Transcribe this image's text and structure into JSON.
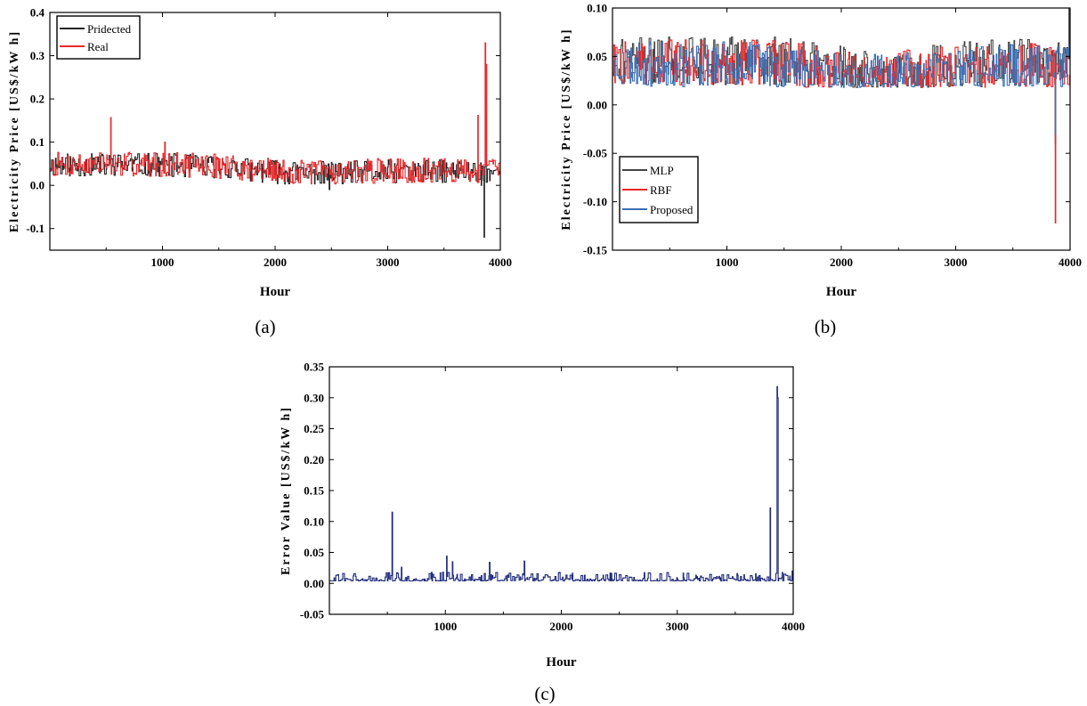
{
  "chart_data": [
    {
      "type": "line",
      "caption": "(a)",
      "xlabel": "Hour",
      "ylabel": "Electricity Price [US$/kW h]",
      "xlim": [
        0,
        4000
      ],
      "ylim": [
        -0.15,
        0.4
      ],
      "xticks": [
        "1000",
        "2000",
        "3000",
        "4000"
      ],
      "yticks": [
        "-0.1",
        "0.0",
        "0.1",
        "0.2",
        "0.3",
        "0.4"
      ],
      "legend": "top-left",
      "series": [
        {
          "name": "Pridected",
          "color": "#222222",
          "base": 0.032,
          "noise": 0.03,
          "floor": 0.0,
          "seed": 11,
          "hump": [
            [
              1000,
              0.015
            ],
            [
              1400,
              0.012
            ],
            [
              2200,
              -0.005
            ],
            [
              3000,
              0.0
            ]
          ],
          "points": [
            [
              2480,
              -0.01
            ],
            [
              3830,
              0.0
            ],
            [
              3855,
              -0.12
            ],
            [
              3870,
              0.06
            ]
          ]
        },
        {
          "name": "Real",
          "color": "#e8282b",
          "base": 0.034,
          "noise": 0.032,
          "floor": 0.0,
          "seed": 7,
          "hump": [
            [
              1000,
              0.015
            ],
            [
              1400,
              0.012
            ],
            [
              2200,
              -0.005
            ],
            [
              3000,
              0.0
            ]
          ],
          "points": [
            [
              540,
              0.157
            ],
            [
              1020,
              0.1
            ],
            [
              3800,
              0.162
            ],
            [
              3865,
              0.33
            ],
            [
              3875,
              0.28
            ]
          ]
        }
      ]
    },
    {
      "type": "line",
      "caption": "(b)",
      "xlabel": "Hour",
      "ylabel": "Electricity Price [US$/kW h]",
      "xlim": [
        0,
        4000
      ],
      "ylim": [
        -0.15,
        0.1
      ],
      "xticks": [
        "1000",
        "2000",
        "3000",
        "4000"
      ],
      "yticks": [
        "-0.15",
        "-0.10",
        "-0.05",
        "0.00",
        "0.05",
        "0.10"
      ],
      "legend": "bottom-left",
      "series": [
        {
          "name": "MLP",
          "color": "#444444",
          "base": 0.04,
          "noise": 0.028,
          "floor": 0.018,
          "cap": 0.07,
          "seed": 21,
          "hump": [
            [
              1400,
              0.006
            ],
            [
              2200,
              -0.008
            ],
            [
              3500,
              0.004
            ]
          ],
          "points": [
            [
              3870,
              -0.04
            ],
            [
              3990,
              0.1
            ]
          ]
        },
        {
          "name": "RBF",
          "color": "#e8282b",
          "base": 0.038,
          "noise": 0.026,
          "floor": 0.018,
          "cap": 0.068,
          "seed": 22,
          "hump": [
            [
              1400,
              0.006
            ],
            [
              2200,
              -0.008
            ],
            [
              3500,
              0.004
            ]
          ],
          "points": [
            [
              3870,
              -0.122
            ]
          ]
        },
        {
          "name": "Proposed",
          "color": "#3a6fb5",
          "base": 0.036,
          "noise": 0.026,
          "floor": 0.018,
          "cap": 0.065,
          "seed": 23,
          "hump": [
            [
              1400,
              0.006
            ],
            [
              2200,
              -0.008
            ],
            [
              3500,
              0.004
            ]
          ],
          "points": [
            [
              3870,
              -0.03
            ]
          ]
        }
      ]
    },
    {
      "type": "line",
      "caption": "(c)",
      "xlabel": "Hour",
      "ylabel": "Error Value [US$/kW h]",
      "xlim": [
        0,
        4000
      ],
      "ylim": [
        -0.05,
        0.35
      ],
      "xticks": [
        "1000",
        "2000",
        "3000",
        "4000"
      ],
      "yticks": [
        "-0.05",
        "0.00",
        "0.05",
        "0.10",
        "0.15",
        "0.20",
        "0.25",
        "0.30",
        "0.35"
      ],
      "legend": "none",
      "series": [
        {
          "name": "Error",
          "color": "#1f2a7a",
          "base": 0.004,
          "noise": 0.014,
          "floor": 0.0,
          "skew": 3,
          "seed": 31,
          "points": [
            [
              540,
              0.115
            ],
            [
              620,
              0.026
            ],
            [
              1010,
              0.044
            ],
            [
              1060,
              0.035
            ],
            [
              1380,
              0.034
            ],
            [
              1680,
              0.036
            ],
            [
              2460,
              0.016
            ],
            [
              3800,
              0.122
            ],
            [
              3860,
              0.318
            ],
            [
              3865,
              0.3
            ],
            [
              3990,
              0.02
            ]
          ]
        }
      ]
    }
  ]
}
